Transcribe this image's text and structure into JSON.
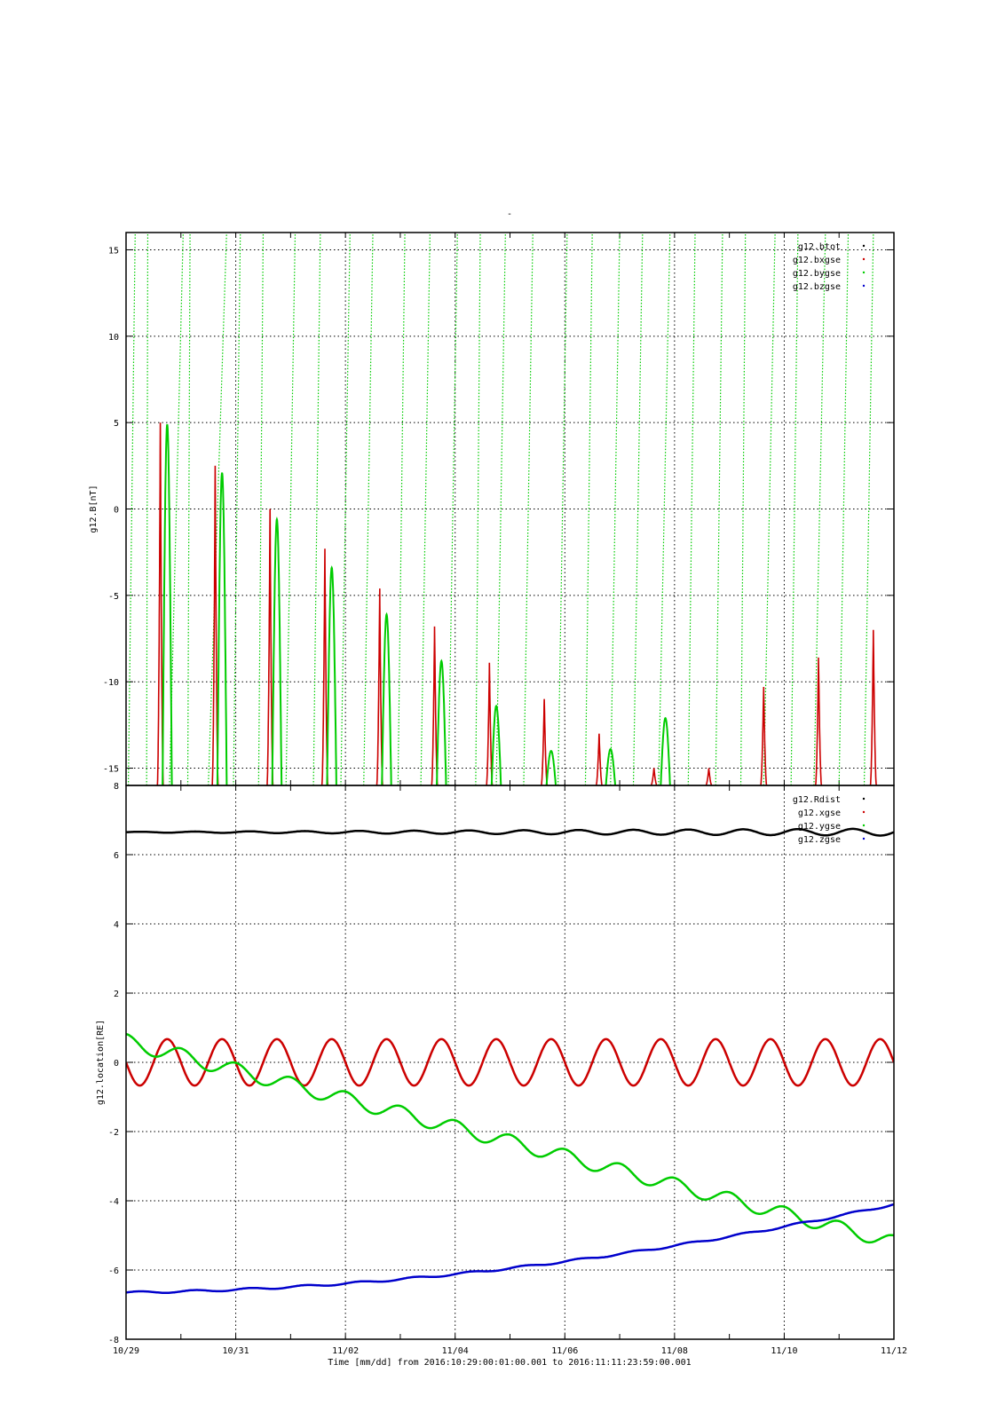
{
  "figure": {
    "title": "-",
    "xlabel": "Time [mm/dd]  from 2016:10:29:00:01:00.001  to  2016:11:11:23:59:00.001"
  },
  "chart_data": [
    {
      "type": "line",
      "ylabel": "g12.B[nT]",
      "ylim": [
        -16,
        16
      ],
      "yticks": [
        15,
        10,
        5,
        0,
        -5,
        -10,
        -15
      ],
      "xlim": [
        "10/29",
        "11/12"
      ],
      "grid": true,
      "legend_position": "top-right",
      "style": "dotted",
      "series": [
        {
          "name": "g12.btot",
          "color": "#000000",
          "values": []
        },
        {
          "name": "g12.bxgse",
          "color": "#cc0000",
          "peak_style": "narrow spike",
          "peaks": [
            {
              "x": "10/29 15:00",
              "y": 5.0
            },
            {
              "x": "10/30 15:00",
              "y": 2.5
            },
            {
              "x": "10/31 15:00",
              "y": 0.0
            },
            {
              "x": "11/01 15:00",
              "y": -2.3
            },
            {
              "x": "11/02 15:00",
              "y": -4.6
            },
            {
              "x": "11/03 15:00",
              "y": -6.8
            },
            {
              "x": "11/04 15:00",
              "y": -8.9
            },
            {
              "x": "11/05 15:00",
              "y": -11.0
            },
            {
              "x": "11/06 15:00",
              "y": -13.0
            },
            {
              "x": "11/07 15:00",
              "y": -15.0
            },
            {
              "x": "11/08 15:00",
              "y": -15.0
            },
            {
              "x": "11/09 15:00",
              "y": -10.3
            },
            {
              "x": "11/10 15:00",
              "y": -8.6
            },
            {
              "x": "11/11 15:00",
              "y": -7.0
            }
          ]
        },
        {
          "name": "g12.bygse",
          "color": "#00cc00",
          "peak_style": "wide lobe",
          "peaks": [
            {
              "x": "10/29 18:00",
              "y": 4.9
            },
            {
              "x": "10/30 18:00",
              "y": 2.1
            },
            {
              "x": "10/31 18:00",
              "y": -0.6
            },
            {
              "x": "11/01 18:00",
              "y": -3.4
            },
            {
              "x": "11/02 18:00",
              "y": -6.1
            },
            {
              "x": "11/03 18:00",
              "y": -8.8
            },
            {
              "x": "11/04 18:00",
              "y": -11.4
            },
            {
              "x": "11/05 18:00",
              "y": -14.0
            },
            {
              "x": "11/06 20:00",
              "y": -13.9
            },
            {
              "x": "11/07 20:00",
              "y": -12.1
            }
          ]
        },
        {
          "name": "g12.bzgse",
          "color": "#0000cc",
          "values": []
        }
      ],
      "steep_traces": {
        "color": "#00cc00",
        "steps": [
          {
            "x": "10/29 01:00",
            "xtop": "10/29 04:00"
          },
          {
            "x": "10/29 09:00",
            "xtop": "10/29 09:30"
          },
          {
            "x": "10/29 19:00",
            "xtop": "10/30 01:00"
          },
          {
            "x": "10/30 03:00",
            "xtop": "10/30 04:00"
          },
          {
            "x": "10/30 12:00",
            "xtop": "10/30 20:00"
          },
          {
            "x": "10/30 23:00",
            "xtop": "10/31 02:00"
          },
          {
            "x": "10/31 10:00",
            "xtop": "10/31 12:00"
          },
          {
            "x": "10/31 22:00",
            "xtop": "11/01 02:00"
          },
          {
            "x": "11/01 10:00",
            "xtop": "11/01 13:00"
          },
          {
            "x": "11/01 22:00",
            "xtop": "11/02 02:00"
          },
          {
            "x": "11/02 08:00",
            "xtop": "11/02 12:00"
          },
          {
            "x": "11/02 23:00",
            "xtop": "11/03 02:00"
          },
          {
            "x": "11/03 09:00",
            "xtop": "11/03 13:00"
          },
          {
            "x": "11/03 21:00",
            "xtop": "11/04 01:00"
          },
          {
            "x": "11/04 09:00",
            "xtop": "11/04 11:00"
          },
          {
            "x": "11/04 18:00",
            "xtop": "11/04 22:00"
          },
          {
            "x": "11/05 06:00",
            "xtop": "11/05 10:00"
          },
          {
            "x": "11/05 21:00",
            "xtop": "11/06 01:00"
          },
          {
            "x": "11/06 09:00",
            "xtop": "11/06 12:00"
          },
          {
            "x": "11/06 20:00",
            "xtop": "11/07 00:00"
          },
          {
            "x": "11/07 06:00",
            "xtop": "11/07 10:00"
          },
          {
            "x": "11/07 17:00",
            "xtop": "11/07 22:00"
          },
          {
            "x": "11/08 06:00",
            "xtop": "11/08 09:00"
          },
          {
            "x": "11/08 18:00",
            "xtop": "11/08 21:00"
          },
          {
            "x": "11/09 05:00",
            "xtop": "11/09 07:00"
          },
          {
            "x": "11/09 15:00",
            "xtop": "11/09 20:00"
          },
          {
            "x": "11/10 03:00",
            "xtop": "11/10 06:00"
          },
          {
            "x": "11/10 13:00",
            "xtop": "11/10 18:00"
          },
          {
            "x": "11/11 00:00",
            "xtop": "11/11 04:00"
          },
          {
            "x": "11/11 11:00",
            "xtop": "11/11 15:00"
          }
        ]
      }
    },
    {
      "type": "line",
      "ylabel": "g12.location[RE]",
      "ylim": [
        -8,
        8
      ],
      "yticks": [
        8,
        6,
        4,
        2,
        0,
        -2,
        -4,
        -6,
        -8
      ],
      "xlim": [
        "10/29",
        "11/12"
      ],
      "grid": true,
      "legend_position": "top-right",
      "series": [
        {
          "name": "g12.Rdist",
          "color": "#000000",
          "mean": 6.65,
          "amplitude_start": 0.01,
          "amplitude_end": 0.1,
          "period_days": 1
        },
        {
          "name": "g12.xgse",
          "color": "#cc0000",
          "amplitude": 0.67,
          "period_days": 1,
          "value_at_start": 0.0
        },
        {
          "name": "g12.ygse",
          "color": "#00cc00",
          "start": 0.6,
          "end": -5.2,
          "daily_wiggle": 0.22
        },
        {
          "name": "g12.zgse",
          "color": "#0000cc",
          "start": -6.65,
          "end": -4.1,
          "daily_wiggle": 0.03
        }
      ]
    }
  ],
  "xticks": [
    "10/29",
    "10/31",
    "11/02",
    "11/04",
    "11/06",
    "11/08",
    "11/10",
    "11/12"
  ]
}
